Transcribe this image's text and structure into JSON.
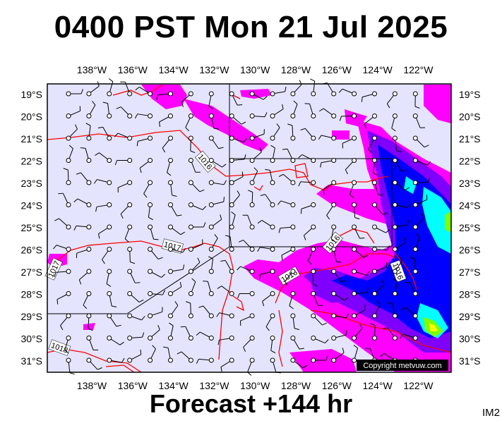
{
  "title": "0400 PST Mon 21 Jul 2025",
  "footer": "Forecast +144 hr",
  "corner_code": "IM2",
  "copyright": "Copyright metvuw.com",
  "lon_labels": [
    "138°W",
    "136°W",
    "134°W",
    "132°W",
    "130°W",
    "128°W",
    "126°W",
    "124°W",
    "122°W"
  ],
  "lat_labels": [
    "19°S",
    "20°S",
    "21°S",
    "22°S",
    "23°S",
    "24°S",
    "25°S",
    "26°S",
    "27°S",
    "28°S",
    "29°S",
    "30°S",
    "31°S"
  ],
  "isobar_labels": [
    "1016",
    "1017",
    "1017",
    "1016",
    "1016",
    "1016",
    "1018"
  ],
  "colors": {
    "background": "#e4e4ff",
    "isobar": "#ff0000",
    "precip_light": "#ff00ff",
    "precip_medium": "#7f00ff",
    "precip_heavy": "#0000ff",
    "precip_extreme": "#00ffff",
    "precip_peak": "#ffff00"
  }
}
